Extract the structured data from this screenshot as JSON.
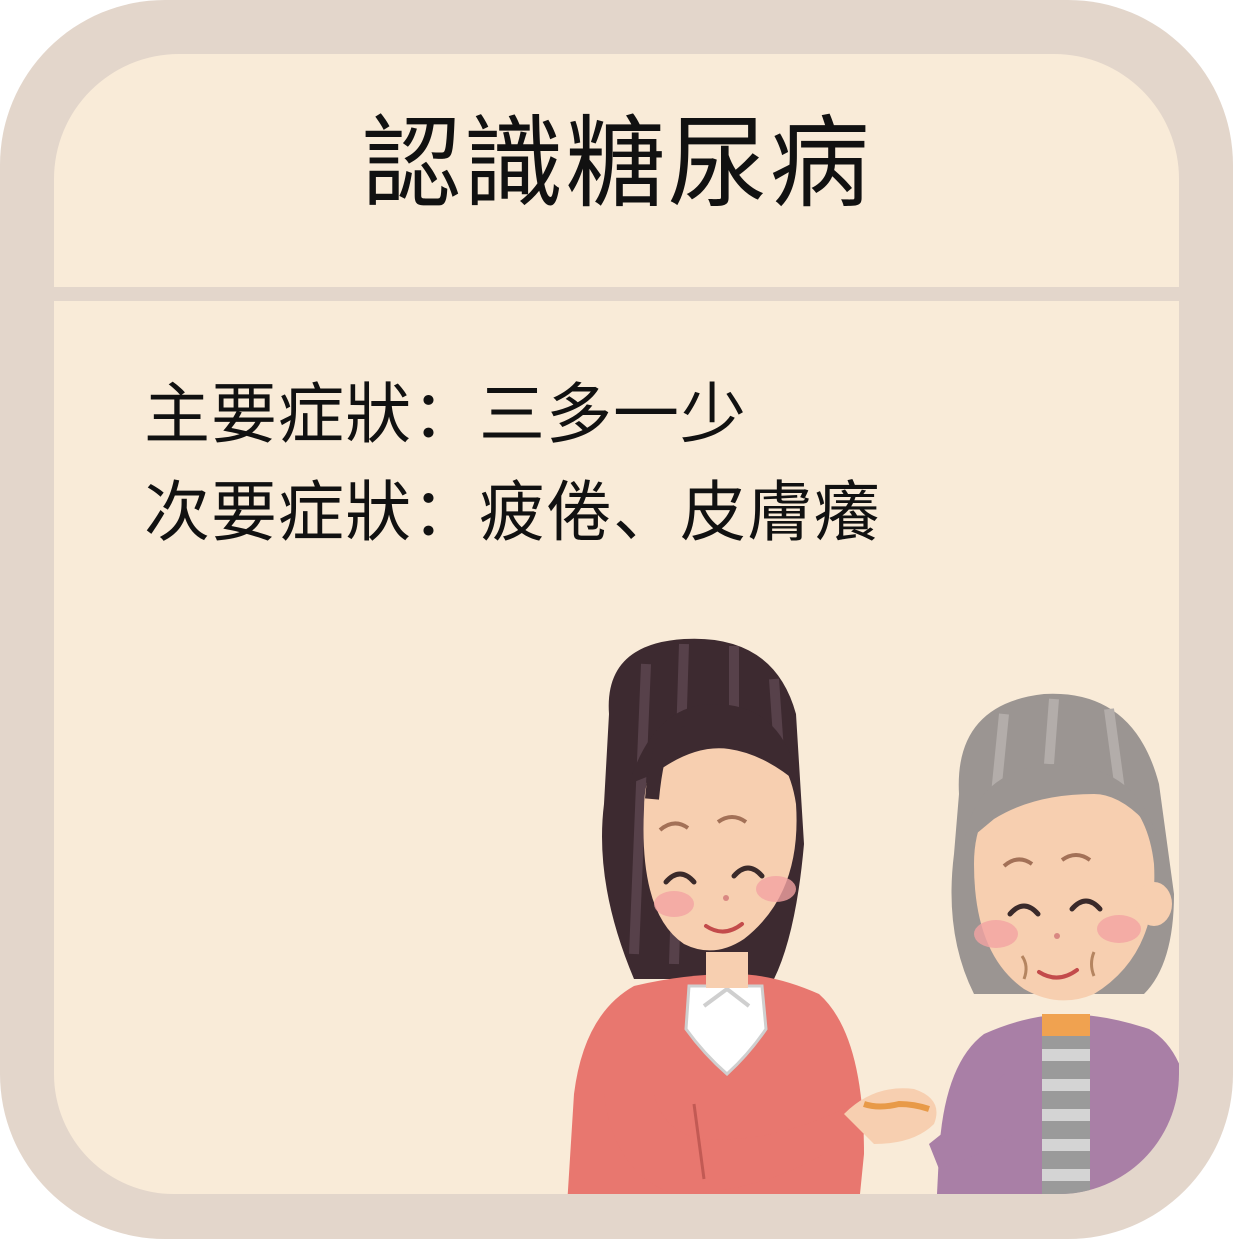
{
  "title": "認識糖尿病",
  "symptoms": [
    {
      "label": "主要症狀：",
      "value": "三多一少"
    },
    {
      "label": "次要症狀：",
      "value": "疲倦、皮膚癢"
    }
  ],
  "colors": {
    "frame": "#e3d6cb",
    "card": "#f9ebd8",
    "text": "#111111"
  },
  "illustration": {
    "figures": [
      "young-woman",
      "elderly-woman"
    ],
    "icon": "caregiver-holding-hands-illustration"
  }
}
